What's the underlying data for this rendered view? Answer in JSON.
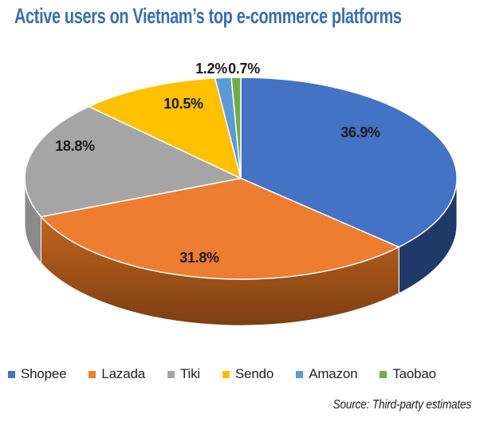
{
  "title": "Active users on Vietnam’s top e-commerce platforms",
  "title_color": "#3B6EB0",
  "source_note": "Source: Third-party estimates",
  "chart_data": {
    "type": "pie",
    "title": "Active users on Vietnam’s top e-commerce platforms",
    "categories": [
      "Shopee",
      "Lazada",
      "Tiki",
      "Sendo",
      "Amazon",
      "Taobao"
    ],
    "values": [
      36.9,
      31.8,
      18.8,
      10.5,
      1.2,
      0.7
    ],
    "pct_labels": [
      "36.9%",
      "31.8%",
      "18.8%",
      "10.5%",
      "1.2%",
      "0.7%"
    ],
    "colors": [
      "#4472C4",
      "#ED7D31",
      "#A5A5A5",
      "#FFC000",
      "#5B9BD5",
      "#70AD47"
    ],
    "side_colors": [
      "#1F3A68",
      [
        "#C2661F",
        "#7C3E12"
      ],
      "#8A8A8A",
      null,
      null,
      null
    ],
    "style": "3d",
    "start_angle_deg": 0,
    "direction": "clockwise",
    "legend_position": "bottom",
    "source": "Source: Third-party estimates"
  }
}
